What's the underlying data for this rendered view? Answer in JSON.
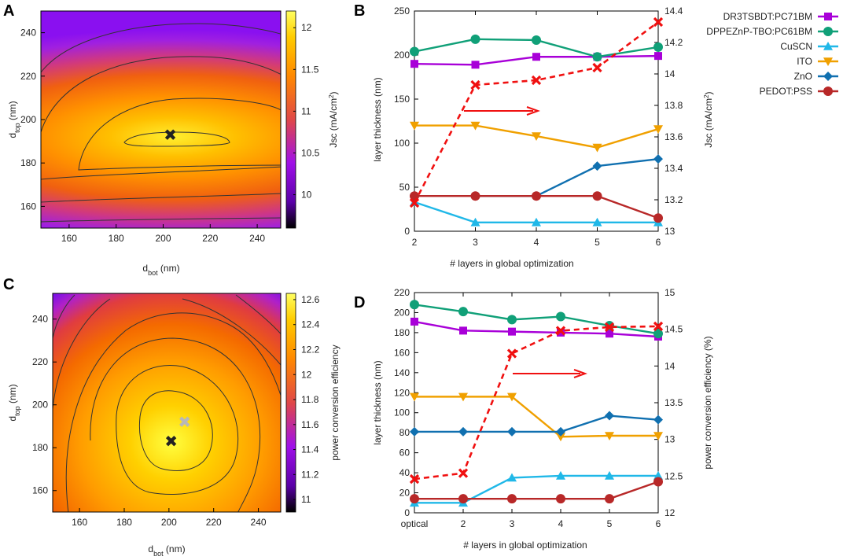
{
  "figure": {
    "panels": [
      "A",
      "B",
      "C",
      "D"
    ]
  },
  "legend": {
    "entries": [
      {
        "label": "DR3TSBDT:PC71BM",
        "color": "#a800d8",
        "marker": "square"
      },
      {
        "label": "DPPEZnP-TBO:PC61BM",
        "color": "#10a078",
        "marker": "circle"
      },
      {
        "label": "CuSCN",
        "color": "#20b8e8",
        "marker": "triangle-up"
      },
      {
        "label": "ITO",
        "color": "#f0a000",
        "marker": "triangle-down"
      },
      {
        "label": "ZnO",
        "color": "#1070b0",
        "marker": "diamond"
      },
      {
        "label": "PEDOT:PSS",
        "color": "#b82828",
        "marker": "circle"
      }
    ]
  },
  "chart_data": [
    {
      "panel": "A",
      "type": "heatmap",
      "xlabel": "d",
      "xlabel_sub": "bot",
      "xlabel_unit": " (nm)",
      "ylabel": "d",
      "ylabel_sub": "top",
      "ylabel_unit": " (nm)",
      "xlim": [
        148,
        250
      ],
      "ylim": [
        150,
        250
      ],
      "xticks": [
        "160",
        "180",
        "200",
        "220",
        "240"
      ],
      "yticks": [
        "160",
        "180",
        "200",
        "220",
        "240"
      ],
      "colorbar_label": "Jsc  (mA/cm",
      "colorbar_label_sup": "2",
      "colorbar_label_end": ")",
      "colorbar_range": [
        9.6,
        12.2
      ],
      "colorbar_ticks": [
        "10",
        "10.5",
        "11",
        "11.5",
        "12"
      ],
      "optimum": {
        "x": 203,
        "y": 193,
        "marker": "✖"
      }
    },
    {
      "panel": "B",
      "type": "line",
      "xlabel": "# layers in global optimization",
      "ylabel": "layer thickness (nm)",
      "y2label": "Jsc  (mA/cm",
      "y2label_sup": "2",
      "y2label_end": ")",
      "categories": [
        "2",
        "3",
        "4",
        "5",
        "6"
      ],
      "ylim": [
        0,
        250
      ],
      "yticks": [
        "0",
        "50",
        "100",
        "150",
        "200",
        "250"
      ],
      "y2lim": [
        13,
        14.4
      ],
      "y2ticks": [
        "13",
        "13.2",
        "13.4",
        "13.6",
        "13.8",
        "14",
        "14.2",
        "14.4"
      ],
      "series": [
        {
          "name": "DR3TSBDT:PC71BM",
          "values": [
            190,
            189,
            198,
            198,
            199
          ]
        },
        {
          "name": "DPPEZnP-TBO:PC61BM",
          "values": [
            204,
            218,
            217,
            198,
            209
          ]
        },
        {
          "name": "CuSCN",
          "values": [
            33,
            10,
            10,
            10,
            10
          ]
        },
        {
          "name": "ITO",
          "values": [
            120,
            120,
            108,
            95,
            116
          ]
        },
        {
          "name": "ZnO",
          "values": [
            null,
            null,
            40,
            74,
            82
          ]
        },
        {
          "name": "PEDOT:PSS",
          "values": [
            40,
            40,
            40,
            40,
            15
          ]
        }
      ],
      "secondary_series": {
        "name": "Jsc",
        "values": [
          13.18,
          13.93,
          13.96,
          14.04,
          14.33
        ]
      },
      "zno_join": {
        "from_index": 1,
        "value": 40
      }
    },
    {
      "panel": "C",
      "type": "heatmap",
      "xlabel": "d",
      "xlabel_sub": "bot",
      "xlabel_unit": " (nm)",
      "ylabel": "d",
      "ylabel_sub": "top",
      "ylabel_unit": " (nm)",
      "xlim": [
        148,
        250
      ],
      "ylim": [
        150,
        252
      ],
      "xticks": [
        "160",
        "180",
        "200",
        "220",
        "240"
      ],
      "yticks": [
        "160",
        "180",
        "200",
        "220",
        "240"
      ],
      "colorbar_label": "power conversion efficiency",
      "colorbar_range": [
        10.9,
        12.65
      ],
      "colorbar_ticks": [
        "11",
        "11.2",
        "11.4",
        "11.6",
        "11.8",
        "12",
        "12.2",
        "12.4",
        "12.6"
      ],
      "optimum": {
        "x": 201,
        "y": 183,
        "marker": "✖"
      },
      "optimum_alt": {
        "x": 207,
        "y": 192,
        "marker": "✖"
      }
    },
    {
      "panel": "D",
      "type": "line",
      "xlabel": "# layers in global optimization",
      "ylabel": "layer thickness (nm)",
      "y2label": "power conversion efficiency (%)",
      "categories": [
        "optical",
        "2",
        "3",
        "4",
        "5",
        "6"
      ],
      "ylim": [
        0,
        220
      ],
      "yticks": [
        "0",
        "20",
        "40",
        "60",
        "80",
        "100",
        "120",
        "140",
        "160",
        "180",
        "200",
        "220"
      ],
      "y2lim": [
        12,
        15
      ],
      "y2ticks": [
        "12",
        "12.5",
        "13",
        "13.5",
        "14",
        "14.5",
        "15"
      ],
      "series": [
        {
          "name": "DR3TSBDT:PC71BM",
          "values": [
            191,
            182,
            181,
            180,
            179,
            176
          ]
        },
        {
          "name": "DPPEZnP-TBO:PC61BM",
          "values": [
            208,
            201,
            193,
            196,
            187,
            179
          ]
        },
        {
          "name": "CuSCN",
          "values": [
            10,
            10,
            35,
            37,
            37,
            37
          ]
        },
        {
          "name": "ITO",
          "values": [
            116,
            116,
            116,
            76,
            77,
            77
          ]
        },
        {
          "name": "ZnO",
          "values": [
            81,
            81,
            81,
            81,
            97,
            93
          ]
        },
        {
          "name": "PEDOT:PSS",
          "values": [
            14,
            14,
            14,
            14,
            14,
            31
          ]
        }
      ],
      "secondary_series": {
        "name": "PCE",
        "values": [
          12.46,
          12.54,
          14.17,
          14.48,
          14.53,
          14.54
        ]
      }
    }
  ]
}
